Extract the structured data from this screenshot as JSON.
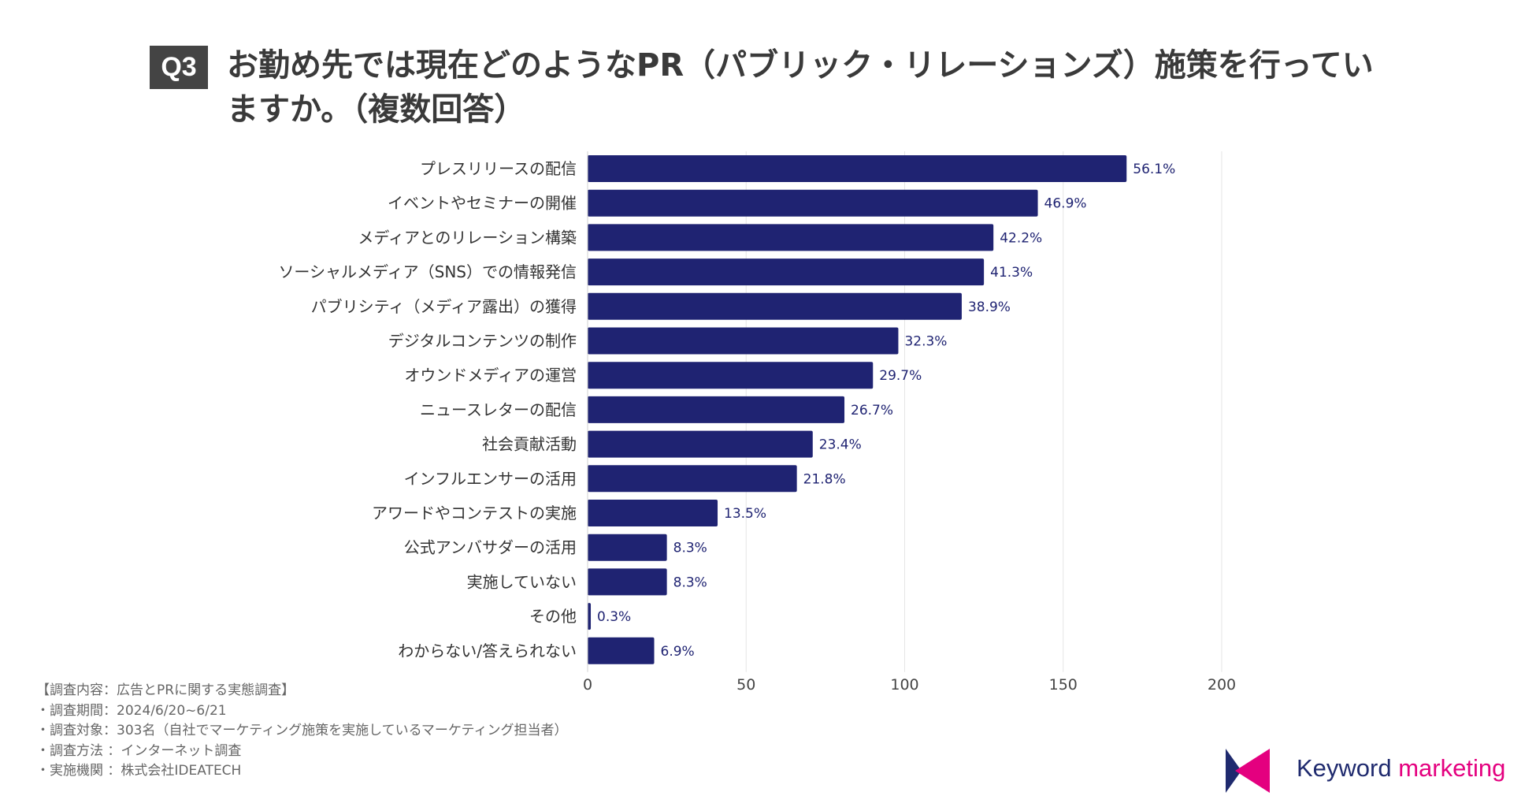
{
  "header": {
    "badge": "Q3",
    "title": "お勤め先では現在どのようなPR（パブリック・リレーションズ）施策を行っていますか。（複数回答）"
  },
  "chart_data": {
    "type": "bar",
    "orientation": "horizontal",
    "categories": [
      "プレスリリースの配信",
      "イベントやセミナーの開催",
      "メディアとのリレーション構築",
      "ソーシャルメディア（SNS）での情報発信",
      "パブリシティ（メディア露出）の獲得",
      "デジタルコンテンツの制作",
      "オウンドメディアの運営",
      "ニュースレターの配信",
      "社会貢献活動",
      "インフルエンサーの活用",
      "アワードやコンテストの実施",
      "公式アンバサダーの活用",
      "実施していない",
      "その他",
      "わからない/答えられない"
    ],
    "values": [
      170,
      142,
      128,
      125,
      118,
      98,
      90,
      81,
      71,
      66,
      41,
      25,
      25,
      1,
      21
    ],
    "data_labels": [
      "56.1%",
      "46.9%",
      "42.2%",
      "41.3%",
      "38.9%",
      "32.3%",
      "29.7%",
      "26.7%",
      "23.4%",
      "21.8%",
      "13.5%",
      "8.3%",
      "8.3%",
      "0.3%",
      "6.9%"
    ],
    "xlim": [
      0,
      200
    ],
    "x_ticks": [
      0,
      50,
      100,
      150,
      200
    ],
    "grid": true,
    "bar_color": "#1f2372"
  },
  "notes": [
    "【調査内容：広告とPRに関する実態調査】",
    "・調査期間：2024/6/20~6/21",
    "・調査対象：303名（自社でマーケティング施策を実施しているマーケティング担当者）",
    "・調査方法 ：インターネット調査",
    "・実施機関 ：株式会社IDEATECH"
  ],
  "logo": {
    "word1": "Keyword",
    "word2": "marketing",
    "colors": {
      "navy": "#1f2a6e",
      "magenta": "#e4007f"
    }
  }
}
